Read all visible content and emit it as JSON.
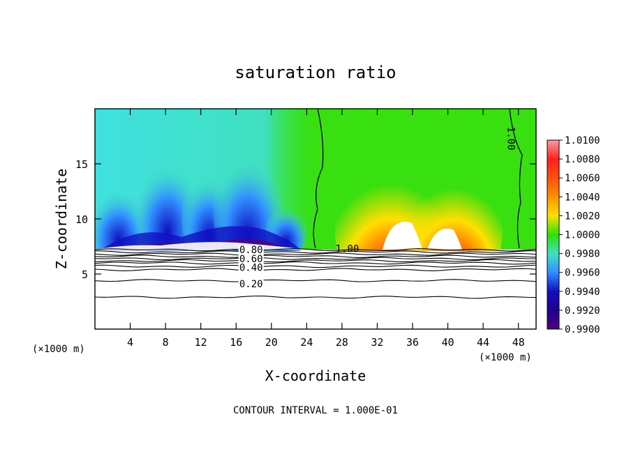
{
  "chart_data": {
    "type": "heatmap",
    "title": "saturation ratio",
    "xlabel": "X-coordinate",
    "ylabel": "Z-coordinate",
    "x_unit_label": "(×1000 m)",
    "y_unit_label": "(×1000 m)",
    "xlim": [
      0,
      50
    ],
    "ylim": [
      0,
      20
    ],
    "x_ticks": [
      "4",
      "8",
      "12",
      "16",
      "20",
      "24",
      "28",
      "32",
      "36",
      "40",
      "44",
      "48"
    ],
    "y_ticks": [
      "5",
      "10",
      "15"
    ],
    "x_tick_values": [
      4,
      8,
      12,
      16,
      20,
      24,
      28,
      32,
      36,
      40,
      44,
      48
    ],
    "y_tick_values": [
      5,
      10,
      15
    ],
    "colorbar": {
      "labels": [
        "1.0100",
        "1.0080",
        "1.0060",
        "1.0040",
        "1.0020",
        "1.0000",
        "0.9980",
        "0.9960",
        "0.9940",
        "0.9920",
        "0.9900"
      ],
      "values": [
        1.01,
        1.008,
        1.006,
        1.004,
        1.002,
        1.0,
        0.998,
        0.996,
        0.994,
        0.992,
        0.99
      ],
      "range": [
        0.99,
        1.01
      ],
      "colors": [
        "#f4a0a8",
        "#ff2020",
        "#ff8c00",
        "#ffe000",
        "#30e000",
        "#40e0c0",
        "#3090ff",
        "#1010c0",
        "#500080"
      ]
    },
    "contour_labels": [
      {
        "text": "0.80",
        "x": 17.7,
        "z": 7.2
      },
      {
        "text": "0.60",
        "x": 17.7,
        "z": 6.4
      },
      {
        "text": "0.40",
        "x": 17.7,
        "z": 5.6
      },
      {
        "text": "0.20",
        "x": 17.7,
        "z": 4.1
      },
      {
        "text": "1.00",
        "x": 28.6,
        "z": 7.3
      },
      {
        "text": "1.00",
        "x": 47.2,
        "z": 17.3
      }
    ],
    "contour_line_heights_km": [
      7.2,
      7.0,
      6.8,
      6.6,
      6.4,
      6.2,
      6.0,
      5.7,
      5.4,
      4.4,
      2.9
    ],
    "footer": "CONTOUR INTERVAL = 1.000E-01"
  }
}
